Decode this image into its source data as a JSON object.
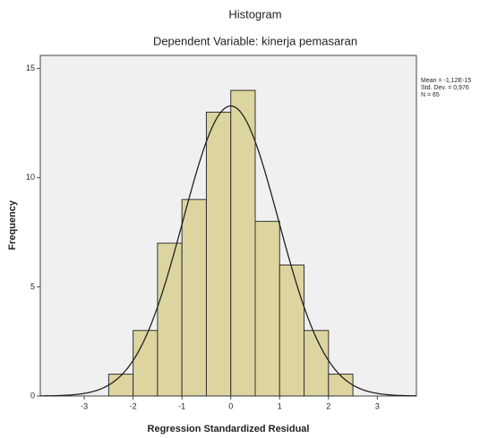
{
  "chart_data": {
    "type": "histogram",
    "title": "Histogram",
    "subtitle": "Dependent Variable: kinerja pemasaran",
    "x_label": "Regression Standardized Residual",
    "y_label": "Frequency",
    "bins": [
      -2.5,
      -2,
      -1.5,
      -1,
      -0.5,
      0,
      0.5,
      1,
      1.5,
      2,
      2.5
    ],
    "values": [
      1,
      3,
      7,
      9,
      13,
      14,
      8,
      6,
      3,
      1
    ],
    "color": "#ddd59f",
    "curve": {
      "mean": -1.12e-15,
      "std_dev": 0.976,
      "n": 65
    },
    "stats_labels": [
      "Mean = -1,12E-15",
      "Std. Dev. = 0,976",
      "N = 65"
    ],
    "xlim": [
      -3.9,
      3.8
    ],
    "xticks": [
      -3,
      -2,
      -1,
      0,
      1,
      2,
      3
    ],
    "ylim": [
      0,
      15.6
    ],
    "yticks": [
      0,
      5,
      10,
      15
    ]
  }
}
